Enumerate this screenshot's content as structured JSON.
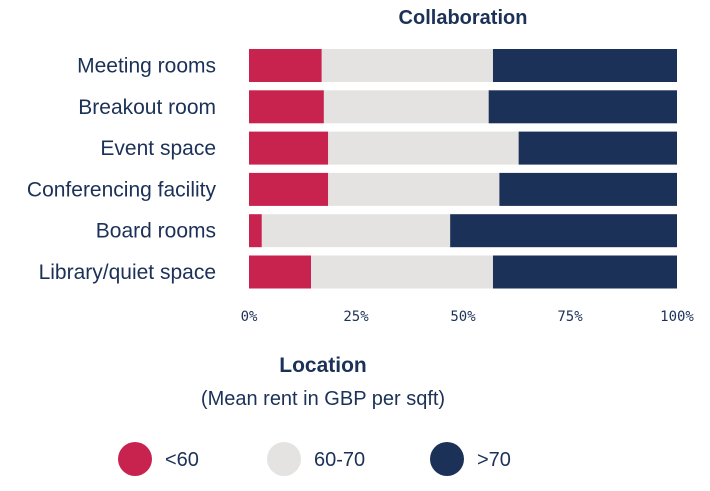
{
  "chart_data": {
    "type": "bar",
    "orientation": "horizontal",
    "stacked": true,
    "title": "Collaboration",
    "categories": [
      "Meeting rooms",
      "Breakout room",
      "Event space",
      "Conferencing facility",
      "Board rooms",
      "Library/quiet space"
    ],
    "series": [
      {
        "name": "<60",
        "color": "#c8234f",
        "values": [
          17,
          17.5,
          18.5,
          18.5,
          3,
          14.5
        ]
      },
      {
        "name": "60-70",
        "color": "#e4e3e1",
        "values": [
          40,
          38.5,
          44.5,
          40,
          44,
          42.5
        ]
      },
      {
        "name": ">70",
        "color": "#1b3157",
        "values": [
          43,
          44,
          37,
          41.5,
          53,
          43
        ]
      }
    ],
    "xlim": [
      0,
      100
    ],
    "xticks": [
      "0%",
      "25%",
      "50%",
      "75%",
      "100%"
    ],
    "grid": false,
    "legend": {
      "title": "Location",
      "subtitle": "(Mean rent in GBP per sqft)",
      "placement": "bottom"
    }
  }
}
